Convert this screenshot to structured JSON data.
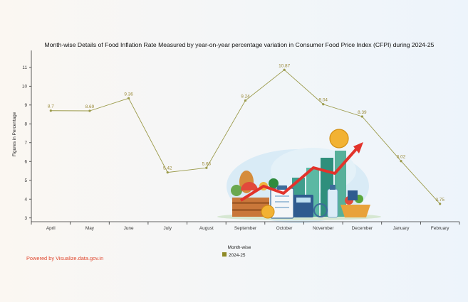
{
  "chart_data": {
    "type": "line",
    "title": "Month-wise Details of Food Inflation Rate Measured by year-on-year percentage variation in Consumer Food Price Index (CFPI) during 2024-25",
    "xlabel": "Month-wise",
    "ylabel": "Figures in Percentage",
    "categories": [
      "April",
      "May",
      "June",
      "July",
      "August",
      "September",
      "October",
      "November",
      "December",
      "January",
      "February"
    ],
    "series": [
      {
        "name": "2024-25",
        "values": [
          8.7,
          8.69,
          9.36,
          5.42,
          5.66,
          9.24,
          10.87,
          9.04,
          8.39,
          6.02,
          3.75
        ],
        "labels": [
          "8.7",
          "8.69",
          "9.36",
          "5.42",
          "5.66",
          "9.24",
          "10.87",
          "9.04",
          "8.39",
          "6.02",
          "3.75"
        ],
        "color": "#9b9a4a"
      }
    ],
    "ylim": [
      2.8,
      11.9
    ],
    "yticks": [
      3,
      4,
      5,
      6,
      7,
      8,
      9,
      10,
      11
    ],
    "grid": false,
    "legend": "bottom-left"
  },
  "footer": {
    "powered_by": "Powered by Visualize.data.gov.in"
  },
  "colors": {
    "series": "#9b9a4a",
    "legend_swatch": "#8e8a25",
    "powered": "#e0482f"
  }
}
